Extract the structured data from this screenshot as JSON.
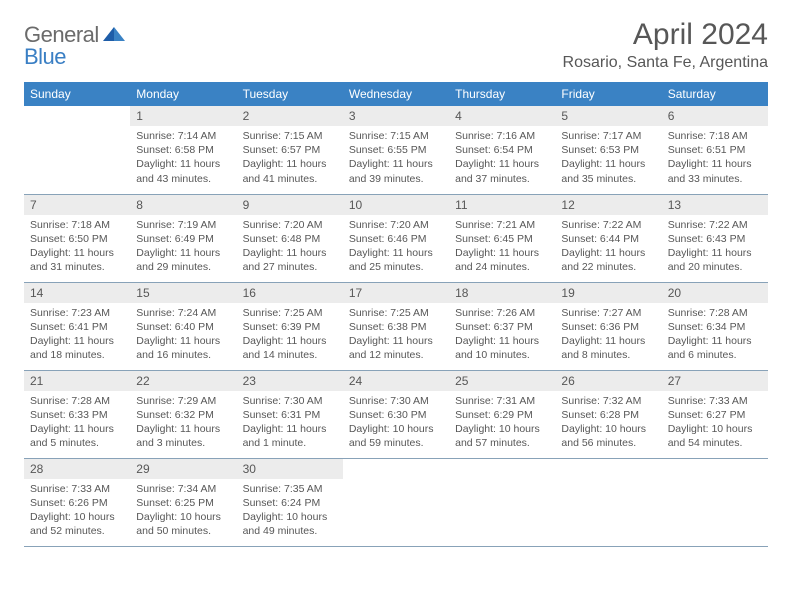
{
  "logo": {
    "general": "General",
    "blue": "Blue"
  },
  "title": {
    "month": "April 2024",
    "location": "Rosario, Santa Fe, Argentina"
  },
  "colors": {
    "header_bg": "#3a82c4",
    "header_text": "#ffffff",
    "daynum_bg": "#ececec",
    "text": "#575757",
    "row_border": "#88a2b8",
    "logo_gray": "#6b6b6b",
    "logo_blue": "#3a7fc4"
  },
  "day_names": [
    "Sunday",
    "Monday",
    "Tuesday",
    "Wednesday",
    "Thursday",
    "Friday",
    "Saturday"
  ],
  "weeks": [
    [
      null,
      {
        "n": "1",
        "sr": "Sunrise: 7:14 AM",
        "ss": "Sunset: 6:58 PM",
        "dl": "Daylight: 11 hours and 43 minutes."
      },
      {
        "n": "2",
        "sr": "Sunrise: 7:15 AM",
        "ss": "Sunset: 6:57 PM",
        "dl": "Daylight: 11 hours and 41 minutes."
      },
      {
        "n": "3",
        "sr": "Sunrise: 7:15 AM",
        "ss": "Sunset: 6:55 PM",
        "dl": "Daylight: 11 hours and 39 minutes."
      },
      {
        "n": "4",
        "sr": "Sunrise: 7:16 AM",
        "ss": "Sunset: 6:54 PM",
        "dl": "Daylight: 11 hours and 37 minutes."
      },
      {
        "n": "5",
        "sr": "Sunrise: 7:17 AM",
        "ss": "Sunset: 6:53 PM",
        "dl": "Daylight: 11 hours and 35 minutes."
      },
      {
        "n": "6",
        "sr": "Sunrise: 7:18 AM",
        "ss": "Sunset: 6:51 PM",
        "dl": "Daylight: 11 hours and 33 minutes."
      }
    ],
    [
      {
        "n": "7",
        "sr": "Sunrise: 7:18 AM",
        "ss": "Sunset: 6:50 PM",
        "dl": "Daylight: 11 hours and 31 minutes."
      },
      {
        "n": "8",
        "sr": "Sunrise: 7:19 AM",
        "ss": "Sunset: 6:49 PM",
        "dl": "Daylight: 11 hours and 29 minutes."
      },
      {
        "n": "9",
        "sr": "Sunrise: 7:20 AM",
        "ss": "Sunset: 6:48 PM",
        "dl": "Daylight: 11 hours and 27 minutes."
      },
      {
        "n": "10",
        "sr": "Sunrise: 7:20 AM",
        "ss": "Sunset: 6:46 PM",
        "dl": "Daylight: 11 hours and 25 minutes."
      },
      {
        "n": "11",
        "sr": "Sunrise: 7:21 AM",
        "ss": "Sunset: 6:45 PM",
        "dl": "Daylight: 11 hours and 24 minutes."
      },
      {
        "n": "12",
        "sr": "Sunrise: 7:22 AM",
        "ss": "Sunset: 6:44 PM",
        "dl": "Daylight: 11 hours and 22 minutes."
      },
      {
        "n": "13",
        "sr": "Sunrise: 7:22 AM",
        "ss": "Sunset: 6:43 PM",
        "dl": "Daylight: 11 hours and 20 minutes."
      }
    ],
    [
      {
        "n": "14",
        "sr": "Sunrise: 7:23 AM",
        "ss": "Sunset: 6:41 PM",
        "dl": "Daylight: 11 hours and 18 minutes."
      },
      {
        "n": "15",
        "sr": "Sunrise: 7:24 AM",
        "ss": "Sunset: 6:40 PM",
        "dl": "Daylight: 11 hours and 16 minutes."
      },
      {
        "n": "16",
        "sr": "Sunrise: 7:25 AM",
        "ss": "Sunset: 6:39 PM",
        "dl": "Daylight: 11 hours and 14 minutes."
      },
      {
        "n": "17",
        "sr": "Sunrise: 7:25 AM",
        "ss": "Sunset: 6:38 PM",
        "dl": "Daylight: 11 hours and 12 minutes."
      },
      {
        "n": "18",
        "sr": "Sunrise: 7:26 AM",
        "ss": "Sunset: 6:37 PM",
        "dl": "Daylight: 11 hours and 10 minutes."
      },
      {
        "n": "19",
        "sr": "Sunrise: 7:27 AM",
        "ss": "Sunset: 6:36 PM",
        "dl": "Daylight: 11 hours and 8 minutes."
      },
      {
        "n": "20",
        "sr": "Sunrise: 7:28 AM",
        "ss": "Sunset: 6:34 PM",
        "dl": "Daylight: 11 hours and 6 minutes."
      }
    ],
    [
      {
        "n": "21",
        "sr": "Sunrise: 7:28 AM",
        "ss": "Sunset: 6:33 PM",
        "dl": "Daylight: 11 hours and 5 minutes."
      },
      {
        "n": "22",
        "sr": "Sunrise: 7:29 AM",
        "ss": "Sunset: 6:32 PM",
        "dl": "Daylight: 11 hours and 3 minutes."
      },
      {
        "n": "23",
        "sr": "Sunrise: 7:30 AM",
        "ss": "Sunset: 6:31 PM",
        "dl": "Daylight: 11 hours and 1 minute."
      },
      {
        "n": "24",
        "sr": "Sunrise: 7:30 AM",
        "ss": "Sunset: 6:30 PM",
        "dl": "Daylight: 10 hours and 59 minutes."
      },
      {
        "n": "25",
        "sr": "Sunrise: 7:31 AM",
        "ss": "Sunset: 6:29 PM",
        "dl": "Daylight: 10 hours and 57 minutes."
      },
      {
        "n": "26",
        "sr": "Sunrise: 7:32 AM",
        "ss": "Sunset: 6:28 PM",
        "dl": "Daylight: 10 hours and 56 minutes."
      },
      {
        "n": "27",
        "sr": "Sunrise: 7:33 AM",
        "ss": "Sunset: 6:27 PM",
        "dl": "Daylight: 10 hours and 54 minutes."
      }
    ],
    [
      {
        "n": "28",
        "sr": "Sunrise: 7:33 AM",
        "ss": "Sunset: 6:26 PM",
        "dl": "Daylight: 10 hours and 52 minutes."
      },
      {
        "n": "29",
        "sr": "Sunrise: 7:34 AM",
        "ss": "Sunset: 6:25 PM",
        "dl": "Daylight: 10 hours and 50 minutes."
      },
      {
        "n": "30",
        "sr": "Sunrise: 7:35 AM",
        "ss": "Sunset: 6:24 PM",
        "dl": "Daylight: 10 hours and 49 minutes."
      },
      null,
      null,
      null,
      null
    ]
  ]
}
